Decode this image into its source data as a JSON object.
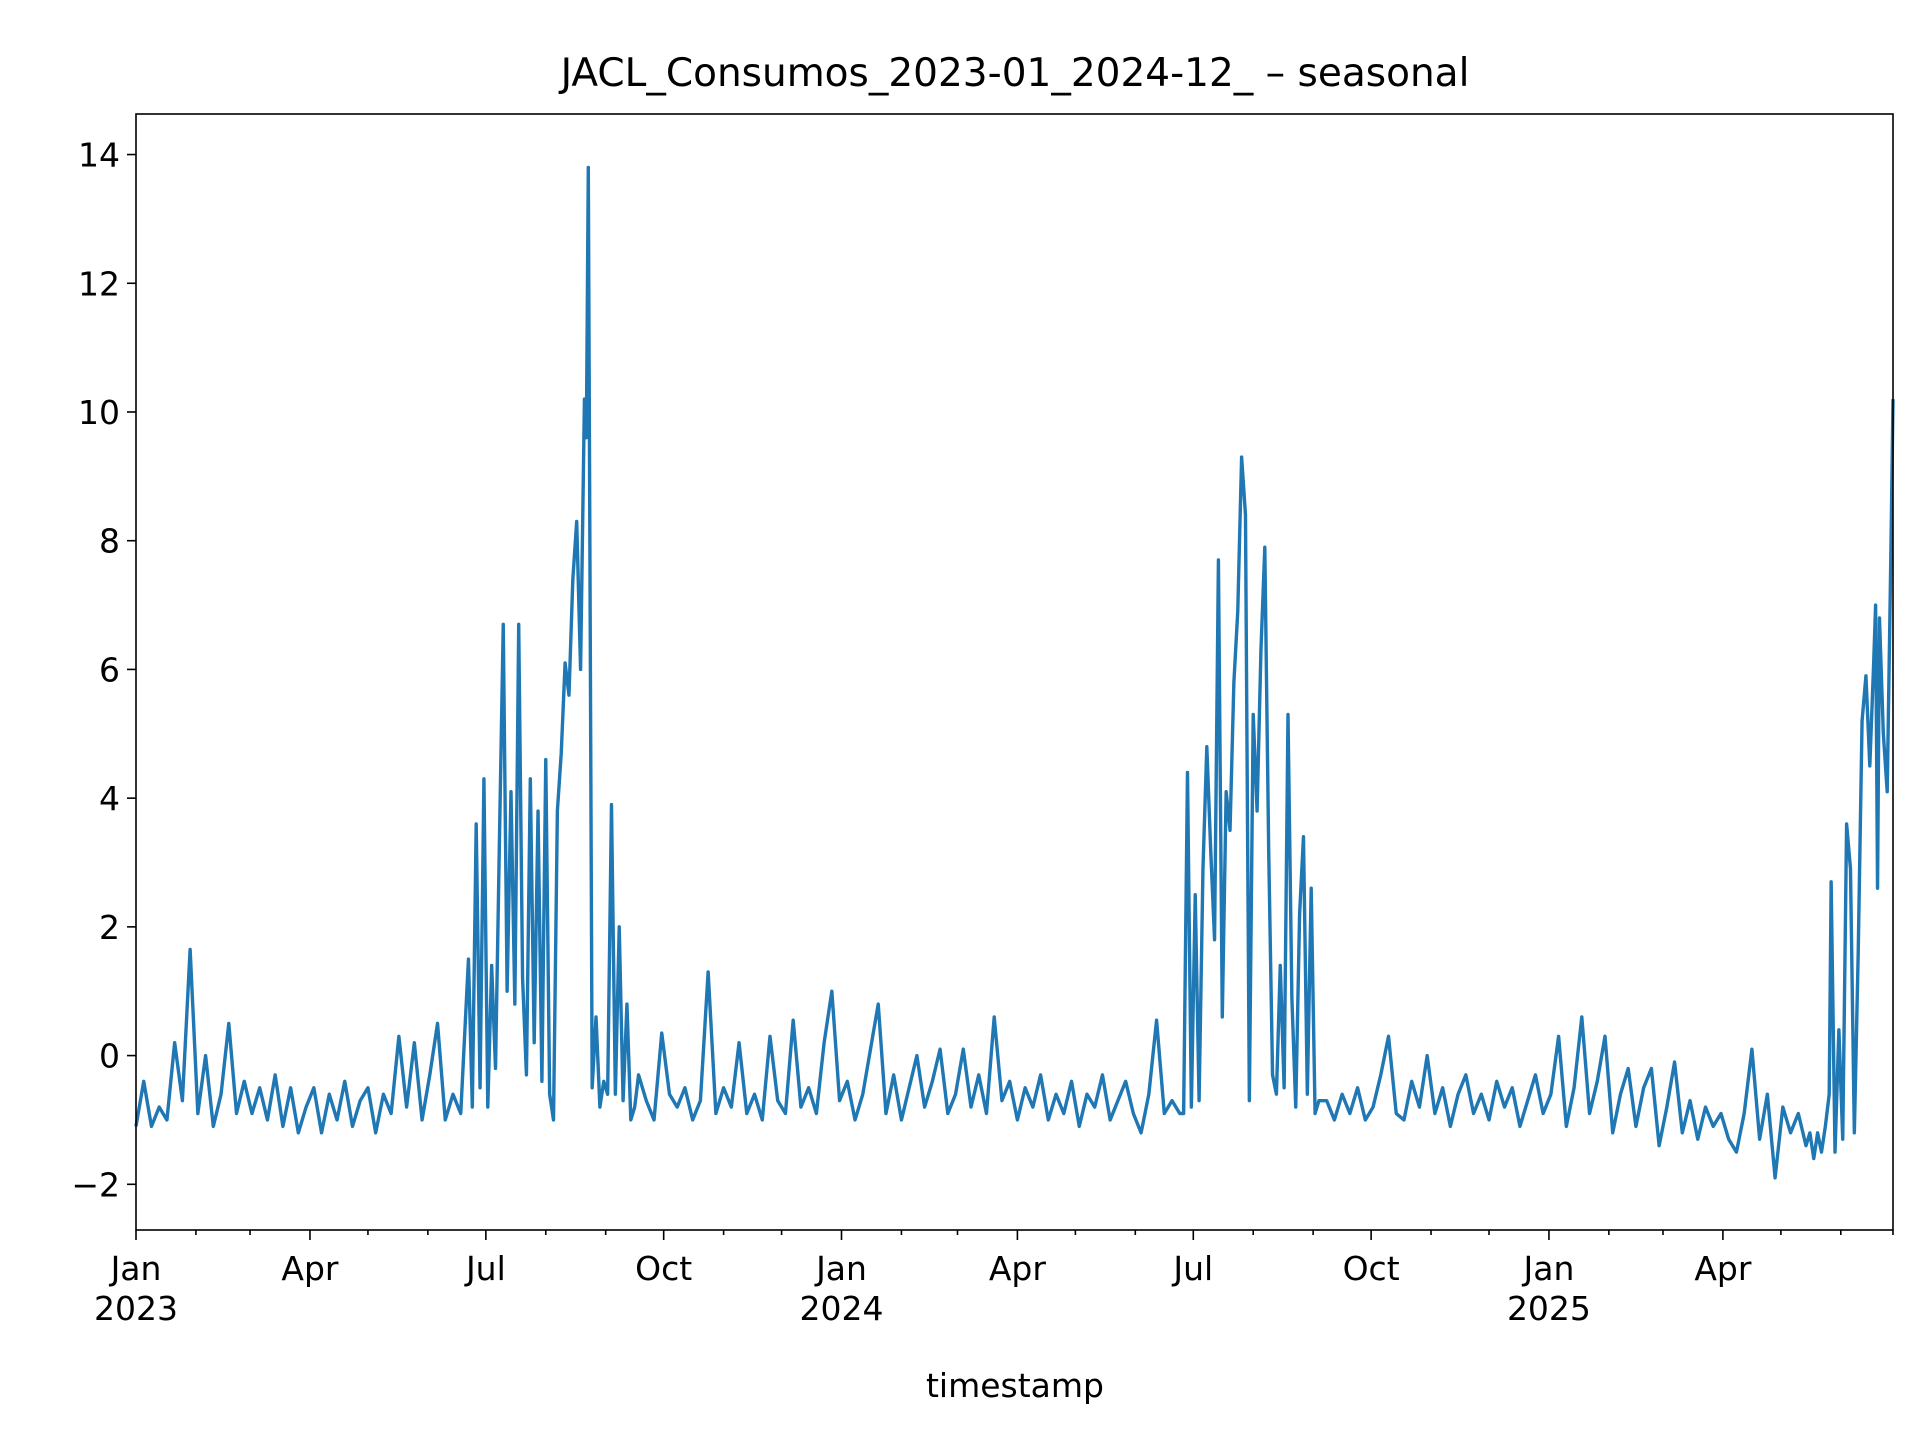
{
  "chart_data": {
    "type": "line",
    "title": "JACL_Consumos_2023-01_2024-12_ – seasonal",
    "xlabel": "timestamp",
    "color": "#1f77b4",
    "x": [
      0,
      4,
      8,
      12,
      16,
      20,
      24,
      28,
      32,
      36,
      40,
      44,
      48,
      52,
      56,
      60,
      64,
      68,
      72,
      76,
      80,
      84,
      88,
      92,
      96,
      100,
      104,
      108,
      112,
      116,
      120,
      124,
      128,
      132,
      136,
      140,
      144,
      148,
      152,
      156,
      160,
      164,
      168,
      172,
      174,
      176,
      178,
      180,
      182,
      184,
      186,
      188,
      190,
      192,
      194,
      196,
      198,
      200,
      202,
      204,
      206,
      208,
      210,
      212,
      214,
      216,
      218,
      220,
      222,
      224,
      226,
      228,
      230,
      232,
      233,
      234,
      236,
      238,
      240,
      242,
      244,
      246,
      248,
      250,
      252,
      254,
      256,
      258,
      260,
      264,
      268,
      272,
      276,
      280,
      284,
      288,
      292,
      296,
      300,
      304,
      308,
      312,
      316,
      320,
      324,
      328,
      332,
      336,
      340,
      344,
      348,
      352,
      356,
      360,
      364,
      368,
      372,
      376,
      380,
      384,
      388,
      392,
      396,
      400,
      404,
      408,
      412,
      416,
      420,
      424,
      428,
      432,
      436,
      440,
      444,
      448,
      452,
      456,
      460,
      464,
      468,
      472,
      476,
      480,
      484,
      488,
      492,
      496,
      500,
      504,
      508,
      512,
      516,
      520,
      524,
      528,
      532,
      536,
      540,
      542,
      544,
      546,
      548,
      550,
      552,
      554,
      556,
      558,
      560,
      562,
      564,
      566,
      568,
      570,
      572,
      574,
      576,
      578,
      580,
      582,
      584,
      586,
      588,
      590,
      592,
      594,
      596,
      598,
      600,
      602,
      604,
      606,
      608,
      610,
      612,
      616,
      620,
      624,
      628,
      632,
      636,
      640,
      644,
      648,
      652,
      656,
      660,
      664,
      668,
      672,
      676,
      680,
      684,
      688,
      692,
      696,
      700,
      704,
      708,
      712,
      716,
      720,
      724,
      728,
      732,
      736,
      740,
      744,
      748,
      752,
      756,
      760,
      764,
      768,
      772,
      776,
      780,
      784,
      788,
      792,
      796,
      800,
      804,
      808,
      812,
      816,
      820,
      824,
      828,
      832,
      836,
      840,
      844,
      848,
      852,
      856,
      860,
      864,
      866,
      868,
      870,
      872,
      874,
      876,
      877,
      879,
      881,
      883,
      885,
      887,
      889,
      891,
      893,
      895,
      897,
      899,
      900,
      901,
      902,
      904,
      906,
      908,
      909
    ],
    "values": [
      -1.1,
      -0.4,
      -1.1,
      -0.8,
      -1.0,
      0.2,
      -0.7,
      1.65,
      -0.9,
      0.0,
      -1.1,
      -0.6,
      0.5,
      -0.9,
      -0.4,
      -0.9,
      -0.5,
      -1.0,
      -0.3,
      -1.1,
      -0.5,
      -1.2,
      -0.8,
      -0.5,
      -1.2,
      -0.6,
      -1.0,
      -0.4,
      -1.1,
      -0.7,
      -0.5,
      -1.2,
      -0.6,
      -0.9,
      0.3,
      -0.8,
      0.2,
      -1.0,
      -0.3,
      0.5,
      -1.0,
      -0.6,
      -0.9,
      1.5,
      -0.8,
      3.6,
      -0.5,
      4.3,
      -0.8,
      1.4,
      -0.2,
      3.3,
      6.7,
      1.0,
      4.1,
      0.8,
      6.7,
      1.2,
      -0.3,
      4.3,
      0.2,
      3.8,
      -0.4,
      4.6,
      -0.6,
      -1.0,
      3.8,
      4.7,
      6.1,
      5.6,
      7.4,
      8.3,
      6.0,
      10.2,
      9.6,
      13.8,
      -0.5,
      0.6,
      -0.8,
      -0.4,
      -0.6,
      3.9,
      -0.6,
      2.0,
      -0.7,
      0.8,
      -1.0,
      -0.8,
      -0.3,
      -0.7,
      -1.0,
      0.35,
      -0.6,
      -0.8,
      -0.5,
      -1.0,
      -0.7,
      1.3,
      -0.9,
      -0.5,
      -0.8,
      0.2,
      -0.9,
      -0.6,
      -1.0,
      0.3,
      -0.7,
      -0.9,
      0.55,
      -0.8,
      -0.5,
      -0.9,
      0.2,
      1.0,
      -0.7,
      -0.4,
      -1.0,
      -0.6,
      0.1,
      0.8,
      -0.9,
      -0.3,
      -1.0,
      -0.5,
      0.0,
      -0.8,
      -0.4,
      0.1,
      -0.9,
      -0.6,
      0.1,
      -0.8,
      -0.3,
      -0.9,
      0.6,
      -0.7,
      -0.4,
      -1.0,
      -0.5,
      -0.8,
      -0.3,
      -1.0,
      -0.6,
      -0.9,
      -0.4,
      -1.1,
      -0.6,
      -0.8,
      -0.3,
      -1.0,
      -0.7,
      -0.4,
      -0.9,
      -1.2,
      -0.6,
      0.55,
      -0.9,
      -0.7,
      -0.9,
      -0.9,
      4.4,
      -0.8,
      2.5,
      -0.7,
      2.9,
      4.8,
      3.2,
      1.8,
      7.7,
      0.6,
      4.1,
      3.5,
      5.8,
      6.9,
      9.3,
      8.4,
      -0.7,
      5.3,
      3.8,
      6.3,
      7.9,
      3.2,
      -0.3,
      -0.6,
      1.4,
      -0.5,
      5.3,
      0.9,
      -0.8,
      2.2,
      3.4,
      -0.6,
      2.6,
      -0.9,
      -0.7,
      -0.7,
      -1.0,
      -0.6,
      -0.9,
      -0.5,
      -1.0,
      -0.8,
      -0.3,
      0.3,
      -0.9,
      -1.0,
      -0.4,
      -0.8,
      0.0,
      -0.9,
      -0.5,
      -1.1,
      -0.6,
      -0.3,
      -0.9,
      -0.6,
      -1.0,
      -0.4,
      -0.8,
      -0.5,
      -1.1,
      -0.7,
      -0.3,
      -0.9,
      -0.6,
      0.3,
      -1.1,
      -0.5,
      0.6,
      -0.9,
      -0.4,
      0.3,
      -1.2,
      -0.6,
      -0.2,
      -1.1,
      -0.5,
      -0.2,
      -1.4,
      -0.8,
      -0.1,
      -1.2,
      -0.7,
      -1.3,
      -0.8,
      -1.1,
      -0.9,
      -1.3,
      -1.5,
      -0.9,
      0.1,
      -1.3,
      -0.6,
      -1.9,
      -0.8,
      -1.2,
      -0.9,
      -1.4,
      -1.2,
      -1.6,
      -1.2,
      -1.5,
      -1.1,
      -0.6,
      2.7,
      -1.5,
      0.4,
      -1.3,
      3.6,
      2.9,
      -1.2,
      1.6,
      5.2,
      5.9,
      4.5,
      6.1,
      7.0,
      2.6,
      6.8,
      5.0,
      4.1,
      8.0,
      10.2
    ],
    "xlim": [
      0,
      909
    ],
    "xticks": [
      {
        "value": 0,
        "label": "Jan\n2023"
      },
      {
        "value": 90,
        "label": "Apr"
      },
      {
        "value": 181,
        "label": "Jul"
      },
      {
        "value": 273,
        "label": "Oct"
      },
      {
        "value": 365,
        "label": "Jan\n2024"
      },
      {
        "value": 456,
        "label": "Apr"
      },
      {
        "value": 547,
        "label": "Jul"
      },
      {
        "value": 639,
        "label": "Oct"
      },
      {
        "value": 731,
        "label": "Jan\n2025"
      },
      {
        "value": 821,
        "label": "Apr"
      }
    ],
    "xminorticks": [
      31,
      59,
      120,
      151,
      212,
      243,
      304,
      334,
      396,
      425,
      486,
      517,
      578,
      609,
      670,
      700,
      762,
      790,
      851,
      882,
      909
    ],
    "ylim": [
      -2.71,
      14.63
    ],
    "yticks": [
      {
        "value": -2,
        "label": "−2"
      },
      0,
      2,
      4,
      6,
      8,
      10,
      12,
      14
    ]
  }
}
